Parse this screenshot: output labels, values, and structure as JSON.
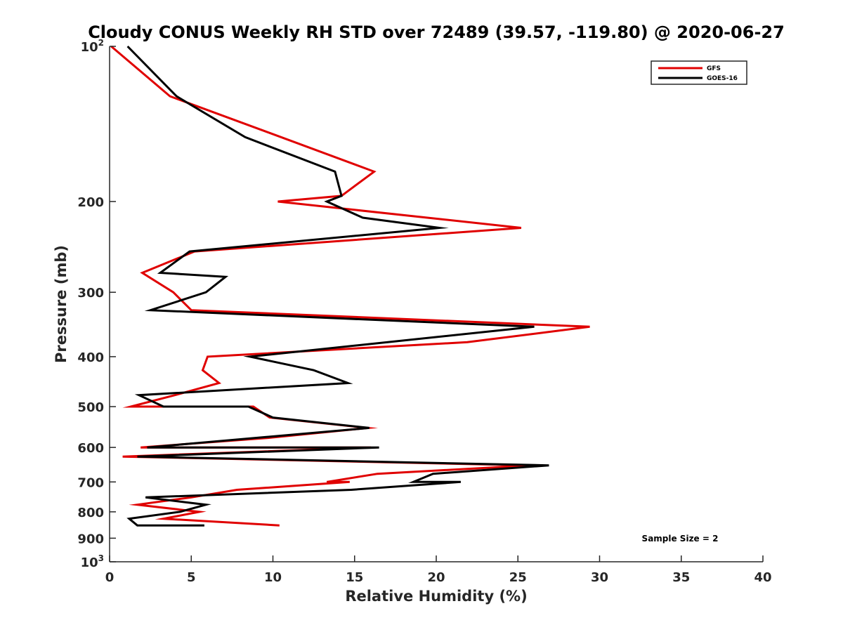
{
  "chart_data": {
    "type": "line",
    "title": "Cloudy CONUS Weekly RH STD over 72489 (39.57, -119.80) @ 2020-06-27",
    "xlabel": "Relative Humidity (%)",
    "ylabel": "Pressure (mb)",
    "xlim": [
      0,
      40
    ],
    "ylim": [
      100,
      1000
    ],
    "yscale": "log",
    "yreversed": true,
    "grid": false,
    "legend_position": "top-right",
    "x_ticks": [
      {
        "value": 0,
        "label": "0"
      },
      {
        "value": 5,
        "label": "5"
      },
      {
        "value": 10,
        "label": "10"
      },
      {
        "value": 15,
        "label": "15"
      },
      {
        "value": 20,
        "label": "20"
      },
      {
        "value": 25,
        "label": "25"
      },
      {
        "value": 30,
        "label": "30"
      },
      {
        "value": 35,
        "label": "35"
      },
      {
        "value": 40,
        "label": "40"
      }
    ],
    "y_ticks": [
      {
        "value": 100,
        "base": "10",
        "exp": "2"
      },
      {
        "value": 200,
        "label": "200"
      },
      {
        "value": 300,
        "label": "300"
      },
      {
        "value": 400,
        "label": "400"
      },
      {
        "value": 500,
        "label": "500"
      },
      {
        "value": 600,
        "label": "600"
      },
      {
        "value": 700,
        "label": "700"
      },
      {
        "value": 800,
        "label": "800"
      },
      {
        "value": 900,
        "label": "900"
      },
      {
        "value": 1000,
        "base": "10",
        "exp": "3"
      }
    ],
    "series": [
      {
        "name": "GFS",
        "color": "#e00000",
        "points": [
          [
            0.1,
            100
          ],
          [
            3.7,
            125
          ],
          [
            10.5,
            150
          ],
          [
            16.2,
            175
          ],
          [
            14.2,
            195
          ],
          [
            10.3,
            200
          ],
          [
            25.2,
            225
          ],
          [
            5.2,
            250
          ],
          [
            2.0,
            275
          ],
          [
            3.9,
            300
          ],
          [
            5.0,
            325
          ],
          [
            29.4,
            350
          ],
          [
            21.9,
            375
          ],
          [
            6.0,
            400
          ],
          [
            5.7,
            425
          ],
          [
            6.7,
            450
          ],
          [
            4.0,
            475
          ],
          [
            1.3,
            500
          ],
          [
            8.8,
            500
          ],
          [
            9.8,
            525
          ],
          [
            15.8,
            550
          ],
          [
            9.7,
            575
          ],
          [
            1.9,
            600
          ],
          [
            16.0,
            600
          ],
          [
            0.8,
            625
          ],
          [
            25.8,
            650
          ],
          [
            16.4,
            675
          ],
          [
            13.3,
            700
          ],
          [
            14.7,
            700
          ],
          [
            7.8,
            725
          ],
          [
            5.0,
            750
          ],
          [
            1.7,
            775
          ],
          [
            5.5,
            800
          ],
          [
            3.3,
            825
          ],
          [
            10.4,
            850
          ]
        ]
      },
      {
        "name": "GOES-16",
        "color": "#000000",
        "points": [
          [
            1.1,
            100
          ],
          [
            4.1,
            125
          ],
          [
            8.3,
            150
          ],
          [
            13.8,
            175
          ],
          [
            14.2,
            195
          ],
          [
            13.3,
            200
          ],
          [
            15.5,
            215
          ],
          [
            20.2,
            225
          ],
          [
            4.9,
            250
          ],
          [
            3.1,
            275
          ],
          [
            7.1,
            280
          ],
          [
            5.9,
            300
          ],
          [
            2.5,
            325
          ],
          [
            26.0,
            350
          ],
          [
            8.6,
            400
          ],
          [
            12.5,
            425
          ],
          [
            14.6,
            450
          ],
          [
            1.8,
            475
          ],
          [
            3.3,
            500
          ],
          [
            8.5,
            500
          ],
          [
            10.0,
            525
          ],
          [
            15.9,
            550
          ],
          [
            2.3,
            600
          ],
          [
            16.5,
            600
          ],
          [
            1.7,
            625
          ],
          [
            26.9,
            650
          ],
          [
            19.8,
            675
          ],
          [
            18.6,
            700
          ],
          [
            21.5,
            700
          ],
          [
            14.8,
            725
          ],
          [
            2.2,
            750
          ],
          [
            5.9,
            775
          ],
          [
            4.3,
            800
          ],
          [
            1.2,
            825
          ],
          [
            1.7,
            850
          ],
          [
            5.8,
            850
          ]
        ]
      }
    ],
    "annotation": "Sample Size = 2"
  }
}
